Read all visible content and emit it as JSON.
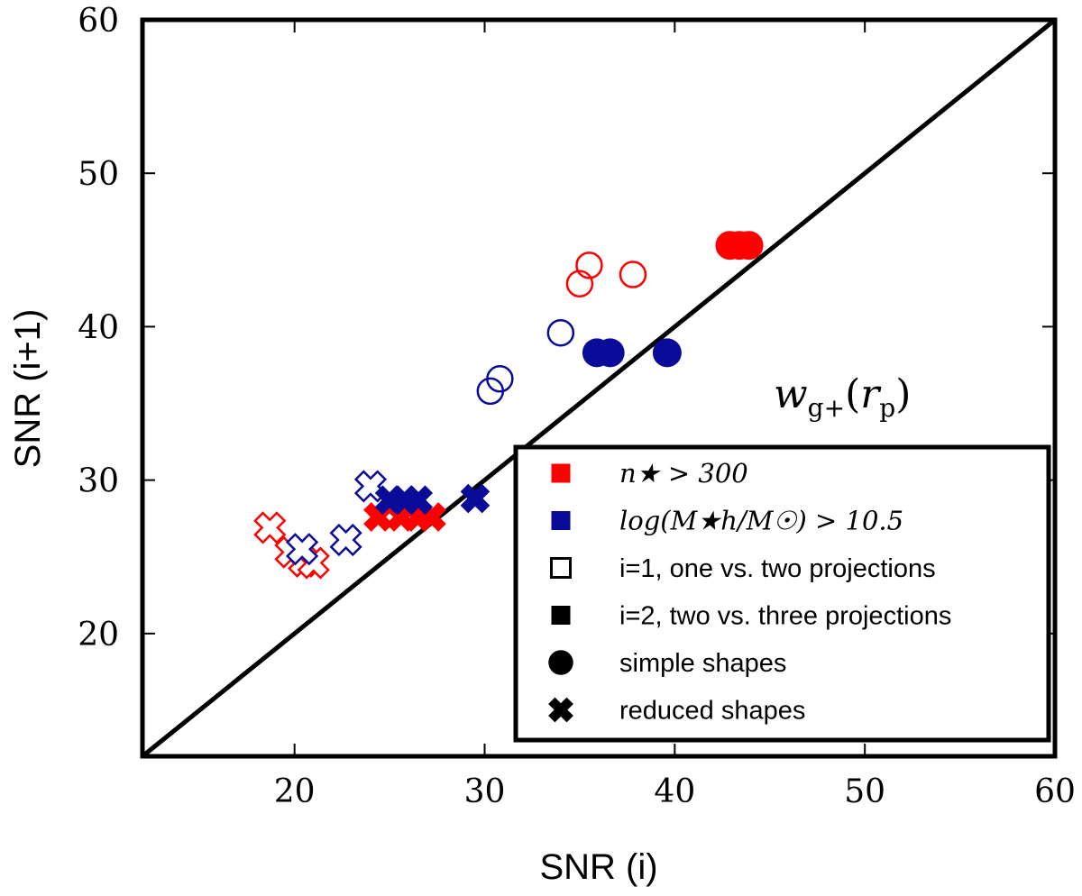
{
  "chart_data": {
    "type": "scatter",
    "xlabel": "SNR (i)",
    "ylabel": "SNR (i+1)",
    "xlim": [
      12,
      60
    ],
    "ylim": [
      12,
      60
    ],
    "xticks": [
      20,
      30,
      40,
      50,
      60
    ],
    "yticks": [
      20,
      30,
      40,
      50,
      60
    ],
    "annotation": "wg+(rp)",
    "reference_line": "y = x",
    "colors": {
      "red": "#ff0000",
      "blue": "#0b0b9a",
      "black": "#000000"
    },
    "legend": {
      "position": "lower-right",
      "entries": [
        {
          "label": "n★ > 300",
          "marker": "square",
          "color": "#ff0000",
          "fill": "filled"
        },
        {
          "label": "log(M★h/M☉) > 10.5",
          "marker": "square",
          "color": "#0b0b9a",
          "fill": "filled"
        },
        {
          "label": "i=1, one vs. two projections",
          "marker": "square",
          "color": "#000000",
          "fill": "open"
        },
        {
          "label": "i=2, two vs. three projections",
          "marker": "square",
          "color": "#000000",
          "fill": "filled"
        },
        {
          "label": "simple shapes",
          "marker": "circle",
          "color": "#000000",
          "fill": "filled"
        },
        {
          "label": "reduced shapes",
          "marker": "cross",
          "color": "#000000",
          "fill": "filled"
        }
      ]
    },
    "series": [
      {
        "name": "red i=1 simple shapes",
        "marker": "circle",
        "color": "#ff0000",
        "fill": "open",
        "points": [
          [
            35.0,
            42.8
          ],
          [
            35.5,
            44.0
          ],
          [
            37.8,
            43.4
          ]
        ]
      },
      {
        "name": "red i=2 simple shapes",
        "marker": "circle",
        "color": "#ff0000",
        "fill": "filled",
        "points": [
          [
            42.9,
            45.3
          ],
          [
            43.4,
            45.3
          ],
          [
            43.9,
            45.3
          ]
        ]
      },
      {
        "name": "blue i=1 simple shapes",
        "marker": "circle",
        "color": "#0b0b9a",
        "fill": "open",
        "points": [
          [
            30.3,
            35.8
          ],
          [
            30.8,
            36.6
          ],
          [
            34.0,
            39.6
          ]
        ]
      },
      {
        "name": "blue i=2 simple shapes",
        "marker": "circle",
        "color": "#0b0b9a",
        "fill": "filled",
        "points": [
          [
            35.9,
            38.3
          ],
          [
            36.6,
            38.3
          ],
          [
            39.6,
            38.3
          ]
        ]
      },
      {
        "name": "red i=1 reduced shapes",
        "marker": "cross",
        "color": "#ff0000",
        "fill": "open",
        "points": [
          [
            18.7,
            26.9
          ],
          [
            19.8,
            25.3
          ],
          [
            20.5,
            24.7
          ],
          [
            21.0,
            24.6
          ]
        ]
      },
      {
        "name": "red i=2 reduced shapes",
        "marker": "cross",
        "color": "#ff0000",
        "fill": "filled",
        "points": [
          [
            24.4,
            27.6
          ],
          [
            25.6,
            27.6
          ],
          [
            26.5,
            27.6
          ],
          [
            27.2,
            27.6
          ]
        ]
      },
      {
        "name": "blue i=1 reduced shapes",
        "marker": "cross",
        "color": "#0b0b9a",
        "fill": "open",
        "points": [
          [
            20.4,
            25.5
          ],
          [
            22.7,
            26.1
          ],
          [
            24.0,
            29.6
          ]
        ]
      },
      {
        "name": "blue i=2 reduced shapes",
        "marker": "cross",
        "color": "#0b0b9a",
        "fill": "filled",
        "points": [
          [
            25.0,
            28.7
          ],
          [
            25.8,
            28.7
          ],
          [
            26.5,
            28.7
          ],
          [
            29.5,
            28.8
          ]
        ]
      }
    ]
  }
}
